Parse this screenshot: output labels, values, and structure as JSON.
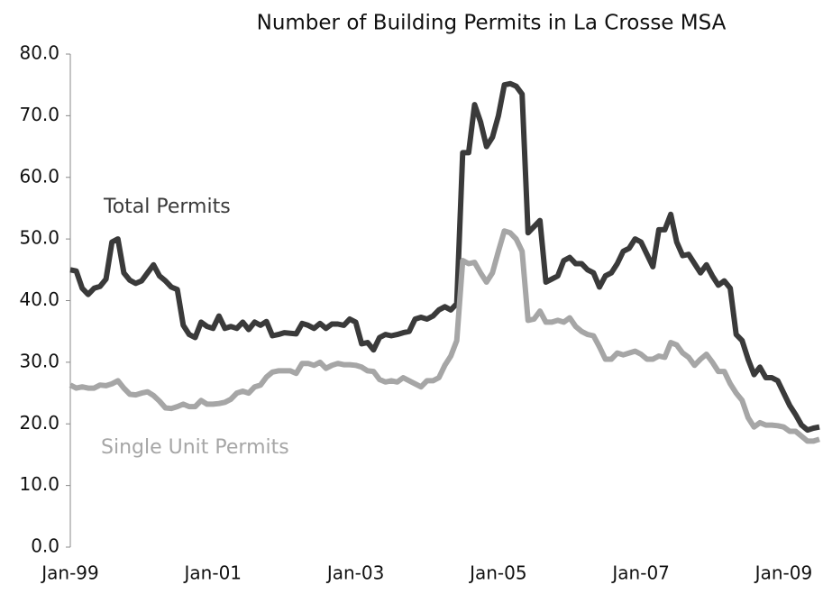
{
  "chart_data": {
    "type": "line",
    "title": "Number of Building Permits in La Crosse MSA",
    "categories": [
      "Jan-99",
      null,
      null,
      null,
      null,
      null,
      null,
      null,
      null,
      null,
      null,
      null,
      null,
      null,
      null,
      null,
      null,
      null,
      null,
      null,
      null,
      null,
      null,
      null,
      "Jan-01",
      null,
      null,
      null,
      null,
      null,
      null,
      null,
      null,
      null,
      null,
      null,
      null,
      null,
      null,
      null,
      null,
      null,
      null,
      null,
      null,
      null,
      null,
      null,
      "Jan-03",
      null,
      null,
      null,
      null,
      null,
      null,
      null,
      null,
      null,
      null,
      null,
      null,
      null,
      null,
      null,
      null,
      null,
      null,
      null,
      null,
      null,
      null,
      null,
      "Jan-05",
      null,
      null,
      null,
      null,
      null,
      null,
      null,
      null,
      null,
      null,
      null,
      null,
      null,
      null,
      null,
      null,
      null,
      null,
      null,
      null,
      null,
      null,
      null,
      "Jan-07",
      null,
      null,
      null,
      null,
      null,
      null,
      null,
      null,
      null,
      null,
      null,
      null,
      null,
      null,
      null,
      null,
      null,
      null,
      null,
      null,
      null,
      null,
      null,
      "Jan-09",
      null,
      null,
      null,
      null,
      null,
      null
    ],
    "series": [
      {
        "name": "Total Permits",
        "color": "#3a3a3a",
        "values": [
          45,
          44.8,
          42,
          41,
          42,
          42.3,
          43.5,
          49.5,
          50,
          44.5,
          43.3,
          42.8,
          43.2,
          44.5,
          45.8,
          44,
          43.2,
          42.2,
          41.8,
          36,
          34.5,
          34,
          36.5,
          35.8,
          35.5,
          37.5,
          35.5,
          35.8,
          35.5,
          36.5,
          35.3,
          36.5,
          36,
          36.6,
          34.3,
          34.5,
          34.8,
          34.7,
          34.6,
          36.3,
          36,
          35.5,
          36.3,
          35.5,
          36.2,
          36.2,
          36,
          37,
          36.5,
          33,
          33.2,
          32,
          34,
          34.5,
          34.3,
          34.5,
          34.8,
          35,
          37,
          37.3,
          37,
          37.5,
          38.5,
          39,
          38.5,
          39.5,
          64,
          64,
          71.8,
          69,
          65,
          66.5,
          70,
          75,
          75.2,
          74.8,
          73.5,
          51,
          52,
          53,
          43,
          43.5,
          44,
          46.5,
          47,
          46,
          46,
          45,
          44.5,
          42.2,
          44,
          44.5,
          46,
          48,
          48.5,
          50,
          49.5,
          47.5,
          45.5,
          51.5,
          51.5,
          54,
          49.5,
          47.3,
          47.5,
          46,
          44.5,
          45.8,
          44,
          42.5,
          43.2,
          42,
          34.5,
          33.5,
          30.5,
          28,
          29.2,
          27.5,
          27.5,
          27,
          25,
          23,
          21.5,
          19.8,
          19,
          19.3,
          19.5
        ]
      },
      {
        "name": "Single Unit Permits",
        "color": "#a6a6a6",
        "values": [
          26.3,
          25.8,
          26,
          25.8,
          25.8,
          26.3,
          26.2,
          26.5,
          27,
          25.8,
          24.8,
          24.7,
          25,
          25.2,
          24.6,
          23.7,
          22.6,
          22.5,
          22.8,
          23.2,
          22.8,
          22.8,
          23.8,
          23.2,
          23.2,
          23.3,
          23.5,
          24,
          25,
          25.3,
          25,
          26,
          26.3,
          27.6,
          28.4,
          28.6,
          28.6,
          28.6,
          28.2,
          29.8,
          29.8,
          29.5,
          30,
          29,
          29.5,
          29.8,
          29.6,
          29.6,
          29.5,
          29.2,
          28.6,
          28.5,
          27.2,
          26.8,
          27,
          26.8,
          27.5,
          27,
          26.5,
          26,
          27,
          27,
          27.5,
          29.5,
          31,
          33.5,
          46.5,
          46,
          46.2,
          44.5,
          43,
          44.5,
          48,
          51.3,
          51,
          50,
          48,
          36.8,
          37,
          38.3,
          36.5,
          36.5,
          36.8,
          36.5,
          37.2,
          35.8,
          35,
          34.5,
          34.3,
          32.5,
          30.5,
          30.5,
          31.5,
          31.2,
          31.5,
          31.8,
          31.3,
          30.5,
          30.5,
          31,
          30.8,
          33.2,
          32.8,
          31.5,
          30.8,
          29.5,
          30.5,
          31.3,
          30,
          28.5,
          28.5,
          26.5,
          25,
          23.8,
          21,
          19.5,
          20.2,
          19.8,
          19.8,
          19.7,
          19.5,
          18.8,
          18.8,
          18,
          17.2,
          17.2,
          17.5
        ]
      }
    ],
    "ylim": [
      0,
      80
    ],
    "yticks": [
      {
        "value": 0,
        "label": "0.0"
      },
      {
        "value": 10,
        "label": "10.0"
      },
      {
        "value": 20,
        "label": "20.0"
      },
      {
        "value": 30,
        "label": "30.0"
      },
      {
        "value": 40,
        "label": "40.0"
      },
      {
        "value": 50,
        "label": "50.0"
      },
      {
        "value": 60,
        "label": "60.0"
      },
      {
        "value": 70,
        "label": "70.0"
      },
      {
        "value": 80,
        "label": "80.0"
      }
    ],
    "grid": false
  }
}
